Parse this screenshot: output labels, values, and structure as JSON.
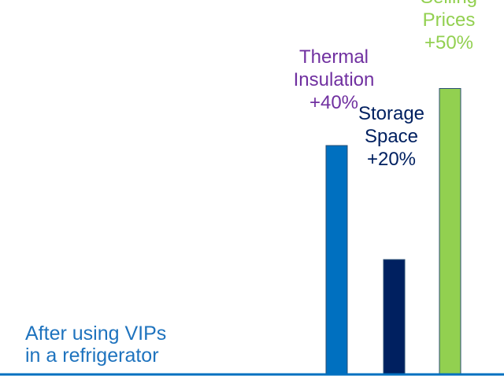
{
  "caption": {
    "line1": "After using VIPs",
    "line2": "in a refrigerator"
  },
  "chart_data": {
    "type": "bar",
    "categories": [
      "Thermal Insulation",
      "Storage Space",
      "Selling Prices"
    ],
    "values": [
      40,
      20,
      50
    ],
    "ylim": [
      0,
      60
    ],
    "grid": false,
    "colors": [
      "#0070c0",
      "#002060",
      "#92d050"
    ],
    "label_colors": [
      "#7030a0",
      "#002060",
      "#92d050"
    ],
    "axis_color": "#0070c0",
    "labels": [
      {
        "line1": "Thermal",
        "line2": "Insulation",
        "line3": "+40%"
      },
      {
        "line1": "Storage",
        "line2": "Space",
        "line3": "+20%"
      },
      {
        "line1": "Selling",
        "line2": "Prices",
        "line3": "+50%"
      }
    ]
  }
}
